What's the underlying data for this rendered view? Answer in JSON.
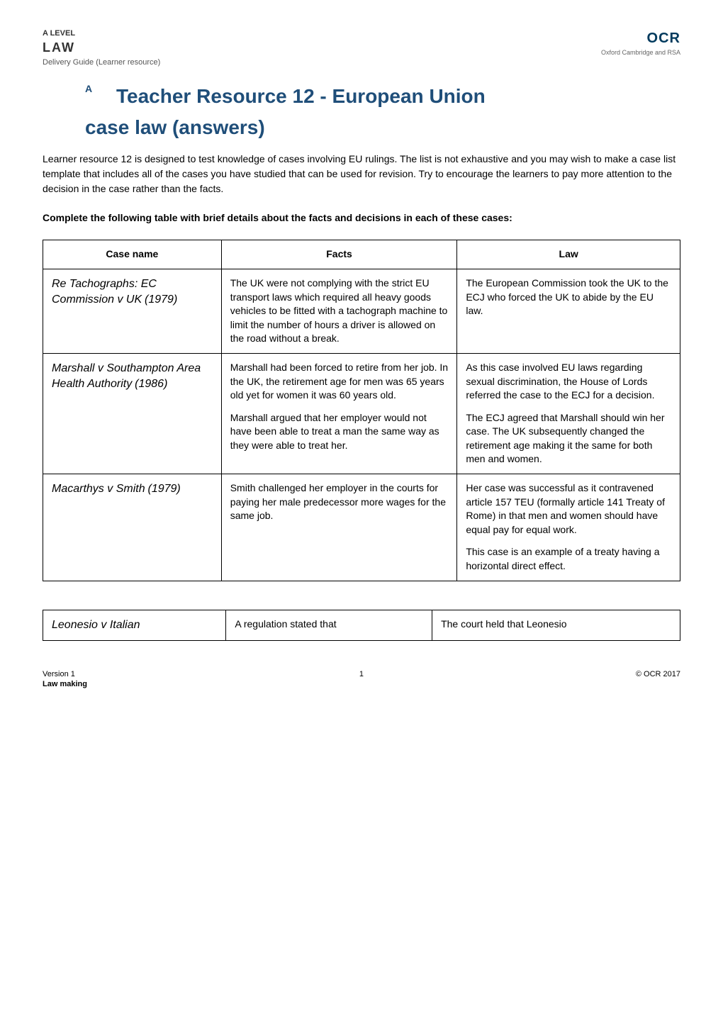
{
  "header": {
    "level": "A LEVEL",
    "subject": "LAW",
    "subtitle": "Delivery Guide (Learner resource)",
    "logo": "OCR",
    "logoSubtitle": "Oxford Cambridge and RSA"
  },
  "title": {
    "label": "A",
    "line1": "Teacher Resource 12 - European Union",
    "line2": "case law (answers)"
  },
  "intro": "Learner resource 12 is designed to test knowledge of cases involving EU rulings. The list is not exhaustive and you may wish to make a case list template that includes all of the cases you have studied that can be used for revision. Try to encourage the learners to pay more attention to the decision in the case rather than the facts.",
  "instruction": "Complete the following table with brief details about the facts and decisions in each of these cases:",
  "table": {
    "headers": [
      "Case name",
      "Facts",
      "Law"
    ],
    "rows": [
      {
        "caseName": "Re Tachographs: EC Commission v UK",
        "caseYear": "(1979)",
        "facts": [
          "The UK were not complying with the strict EU transport laws which required all heavy goods vehicles to be fitted with a tachograph machine to limit the number of hours a driver is allowed on the road without a break."
        ],
        "law": [
          "The European Commission took the UK to the ECJ who forced the UK to abide by the EU law."
        ]
      },
      {
        "caseName": "Marshall v Southampton Area Health Authority",
        "caseYear": "(1986)",
        "facts": [
          "Marshall had been forced to retire from her job. In the UK, the retirement age for men was 65 years old yet for women it was 60 years old.",
          "Marshall argued that her employer would not have been able to treat a man the same way as they were able to treat her."
        ],
        "law": [
          "As this case involved EU laws regarding sexual discrimination, the House of Lords referred the case to the ECJ for a decision.",
          "The ECJ agreed that Marshall should win her case. The UK subsequently changed the retirement age making it the same for both men and women."
        ]
      },
      {
        "caseName": "Macarthys v Smith",
        "caseYear": "(1979)",
        "facts": [
          "Smith challenged her employer in the courts for paying her male predecessor more wages for the same job."
        ],
        "law": [
          "Her case was successful as it contravened article 157 TEU (formally article 141 Treaty of Rome) in that men and women should have equal pay for equal work.",
          "This case is an example of a treaty having a horizontal direct effect."
        ]
      },
      {
        "caseName": "Leonesio v Italian",
        "caseYear": "",
        "facts": [
          "A regulation stated that"
        ],
        "law": [
          "The court held that Leonesio"
        ]
      }
    ]
  },
  "footer": {
    "version": "Version 1",
    "topic": "Law making",
    "pageNum": "1",
    "copyright": "© OCR 2017"
  },
  "colors": {
    "titleColor": "#1f4e79",
    "logoColor": "#003a5d",
    "textColor": "#000000",
    "borderColor": "#000000"
  }
}
